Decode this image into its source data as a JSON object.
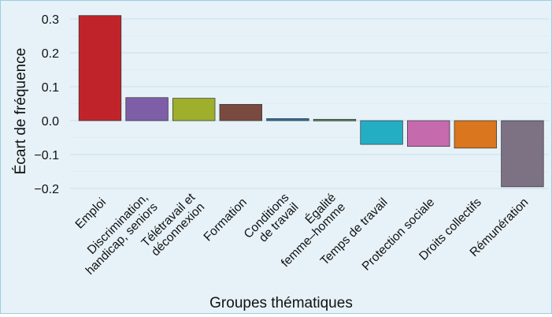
{
  "chart_data": {
    "type": "bar",
    "title": "",
    "xlabel": "Groupes thématiques",
    "ylabel": "Écart de fréquence",
    "ylim": [
      -0.22,
      0.33
    ],
    "yticks": [
      "0.3",
      "0.2",
      "0.1",
      "0.0",
      "−0.1",
      "−0.2"
    ],
    "ytick_values": [
      0.3,
      0.2,
      0.1,
      0.0,
      -0.1,
      -0.2
    ],
    "grid": true,
    "legend": "none",
    "categories": [
      [
        "Emploi"
      ],
      [
        "Discrimination,",
        "handicap, seniors"
      ],
      [
        "Télétravail et",
        "déconnexion"
      ],
      [
        "Formation"
      ],
      [
        "Conditions",
        "de travail"
      ],
      [
        "Égalité",
        "femme–homme"
      ],
      [
        "Temps de travail"
      ],
      [
        "Protection sociale"
      ],
      [
        "Droits collectifs"
      ],
      [
        "Rémunération"
      ]
    ],
    "values": [
      0.31,
      0.068,
      0.066,
      0.048,
      0.006,
      0.004,
      -0.07,
      -0.076,
      -0.081,
      -0.195
    ],
    "colors": [
      "#c0242a",
      "#7e5ea6",
      "#9fae2b",
      "#7a4a40",
      "#2d6fa6",
      "#4e8a50",
      "#24aec4",
      "#c66aae",
      "#d9761e",
      "#7c7284"
    ]
  }
}
